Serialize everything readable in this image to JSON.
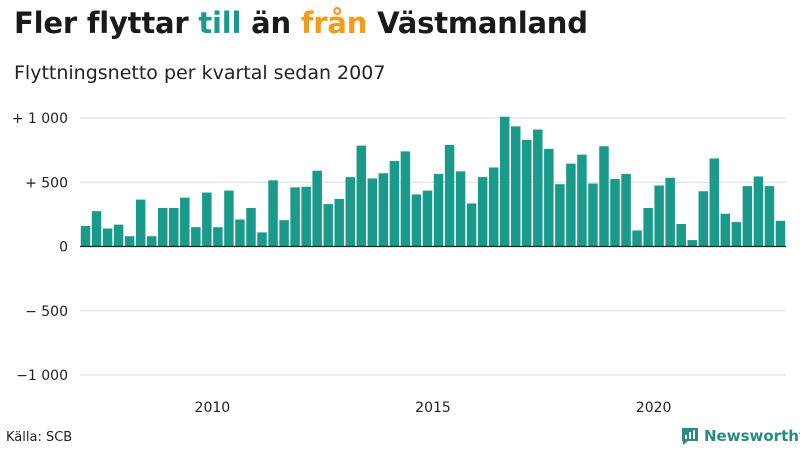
{
  "title": {
    "part1": "Fler flyttar ",
    "word_to": "till",
    "part2": " än ",
    "word_from": "från",
    "part3": " Västmanland",
    "color_to": "#1a9a8a",
    "color_from": "#f29b1d"
  },
  "subtitle": "Flyttningsnetto per kvartal sedan 2007",
  "source": "Källa: SCB",
  "brand": {
    "name": "Newsworthy",
    "icon": "newsworthy-chart-icon",
    "color": "#2a8c80"
  },
  "chart_data": {
    "type": "bar",
    "bar_color": "#1a9a8a",
    "ylim": [
      -1000,
      1000
    ],
    "grid": true,
    "y_ticks": [
      {
        "value": 1000,
        "label": "+ 1 000"
      },
      {
        "value": 500,
        "label": "+   500"
      },
      {
        "value": 0,
        "label": "0"
      },
      {
        "value": -500,
        "label": "−  500"
      },
      {
        "value": -1000,
        "label": "−1 000"
      }
    ],
    "x_ticks": [
      {
        "index": 12,
        "label": "2010"
      },
      {
        "index": 32,
        "label": "2015"
      },
      {
        "index": 52,
        "label": "2020"
      }
    ],
    "categories": [
      "2007 Q1",
      "2007 Q2",
      "2007 Q3",
      "2007 Q4",
      "2008 Q1",
      "2008 Q2",
      "2008 Q3",
      "2008 Q4",
      "2009 Q1",
      "2009 Q2",
      "2009 Q3",
      "2009 Q4",
      "2010 Q1",
      "2010 Q2",
      "2010 Q3",
      "2010 Q4",
      "2011 Q1",
      "2011 Q2",
      "2011 Q3",
      "2011 Q4",
      "2012 Q1",
      "2012 Q2",
      "2012 Q3",
      "2012 Q4",
      "2013 Q1",
      "2013 Q2",
      "2013 Q3",
      "2013 Q4",
      "2014 Q1",
      "2014 Q2",
      "2014 Q3",
      "2014 Q4",
      "2015 Q1",
      "2015 Q2",
      "2015 Q3",
      "2015 Q4",
      "2016 Q1",
      "2016 Q2",
      "2016 Q3",
      "2016 Q4",
      "2017 Q1",
      "2017 Q2",
      "2017 Q3",
      "2017 Q4",
      "2018 Q1",
      "2018 Q2",
      "2018 Q3",
      "2018 Q4",
      "2019 Q1",
      "2019 Q2",
      "2019 Q3",
      "2019 Q4",
      "2020 Q1",
      "2020 Q2",
      "2020 Q3",
      "2020 Q4",
      "2021 Q1",
      "2021 Q2",
      "2021 Q3",
      "2021 Q4",
      "2022 Q1",
      "2022 Q2",
      "2022 Q3",
      "2022 Q4"
    ],
    "values": [
      160,
      275,
      140,
      170,
      80,
      365,
      80,
      300,
      300,
      380,
      150,
      420,
      150,
      435,
      210,
      300,
      110,
      515,
      205,
      460,
      465,
      590,
      330,
      370,
      540,
      785,
      530,
      570,
      665,
      740,
      405,
      435,
      565,
      790,
      585,
      335,
      540,
      615,
      1010,
      935,
      830,
      910,
      760,
      485,
      645,
      715,
      490,
      780,
      525,
      565,
      125,
      300,
      475,
      535,
      175,
      50,
      430,
      685,
      255,
      190,
      470,
      545,
      470,
      200
    ]
  }
}
